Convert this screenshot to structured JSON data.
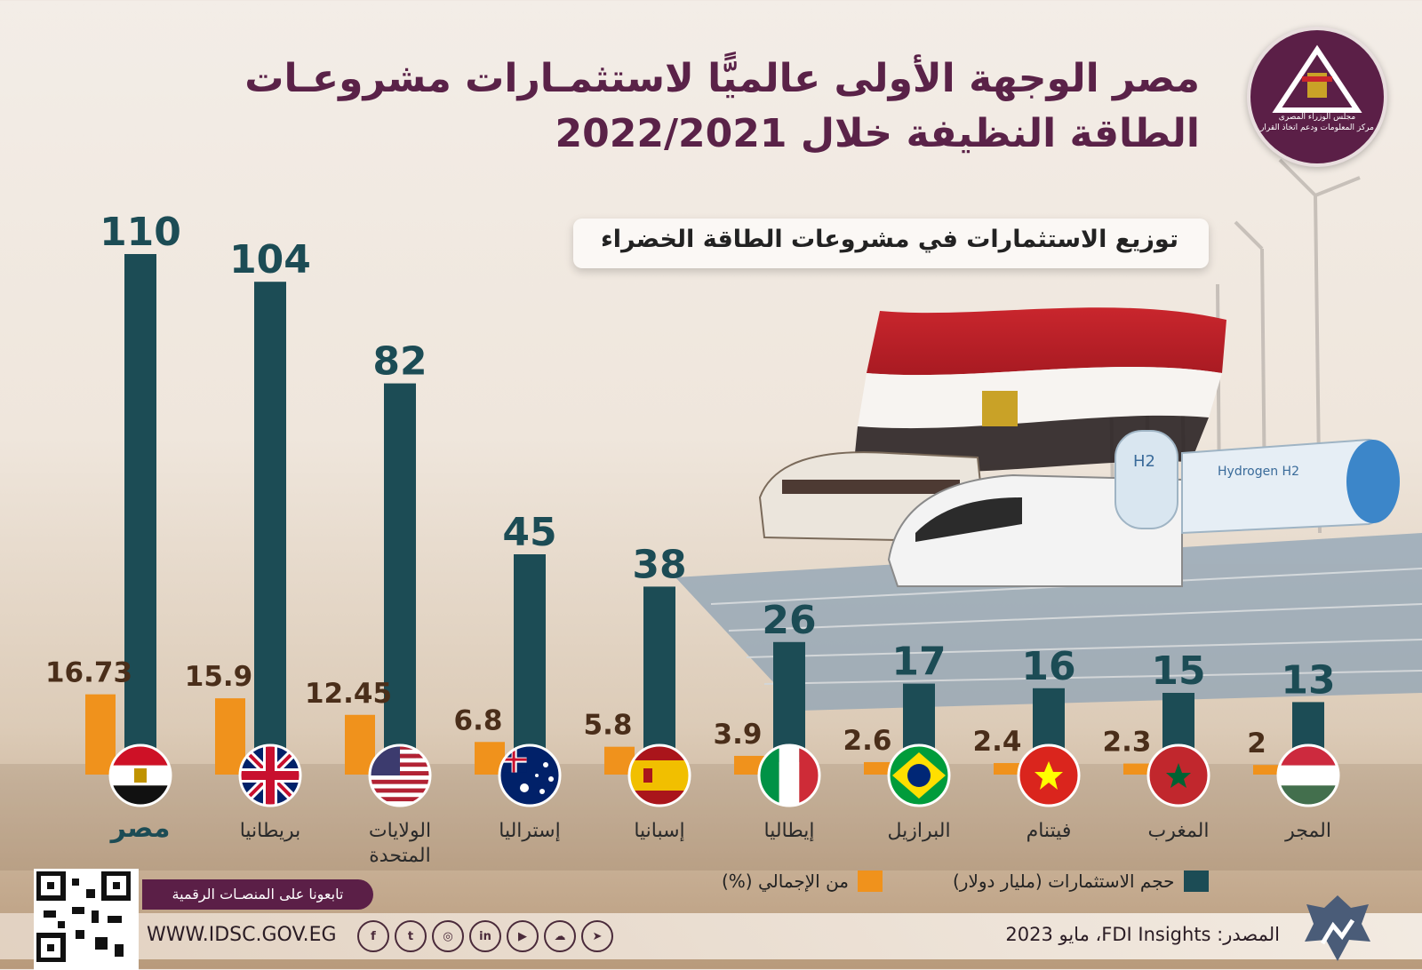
{
  "title": {
    "line1": "مصر الوجهة الأولى عالميًّا لاستثمـارات مشروعـات",
    "line2": "الطاقة النظيفة خلال 2022/2021"
  },
  "subtitle": "توزيع الاستثمارات في مشروعات الطاقة الخضراء",
  "logo": {
    "line1": "مجلس الوزراء المصرى",
    "line2": "مركز المعلومات ودعم اتخاذ القرار"
  },
  "colors": {
    "investment": "#1c4c55",
    "share": "#f0921c",
    "title": "#5a2248",
    "bar_label": "#1c4c55",
    "share_label": "#4a2e1a"
  },
  "chart_data": {
    "type": "bar",
    "categories": [
      "مصر",
      "بريطانيا",
      "الولايات المتحدة",
      "إستراليا",
      "إسبانيا",
      "إيطاليا",
      "البرازيل",
      "فيتنام",
      "المغرب",
      "المجر"
    ],
    "flags": [
      "egypt-flag-icon",
      "uk-flag-icon",
      "usa-flag-icon",
      "australia-flag-icon",
      "spain-flag-icon",
      "italy-flag-icon",
      "brazil-flag-icon",
      "vietnam-flag-icon",
      "morocco-flag-icon",
      "hungary-flag-icon"
    ],
    "series": [
      {
        "name": "حجم الاستثمارات (مليار دولار)",
        "values": [
          110,
          104,
          82,
          45,
          38,
          26,
          17,
          16,
          15,
          13
        ],
        "labels": [
          "110",
          "104",
          "82",
          "45",
          "38",
          "26",
          "17",
          "16",
          "15",
          "13"
        ]
      },
      {
        "name": "من الإجمالي (%)",
        "values": [
          16.73,
          15.9,
          12.45,
          6.8,
          5.8,
          3.9,
          2.6,
          2.4,
          2.3,
          2
        ],
        "labels": [
          "16.73",
          "15.9",
          "12.45",
          "6.8",
          "5.8",
          "3.9",
          "2.6",
          "2.4",
          "2.3",
          "2"
        ]
      }
    ],
    "ylim": [
      0,
      115
    ],
    "legend_position": "bottom"
  },
  "legend": {
    "investment": "حجم الاستثمارات (مليار دولار)",
    "share": "من الإجمالي (%)"
  },
  "footer": {
    "follow": "تابعونا على المنصـات الرقمية",
    "website": "WWW.IDSC.GOV.EG",
    "source": "المصدر: FDI Insights، مايو 2023",
    "social_icons": [
      "facebook-icon",
      "twitter-icon",
      "instagram-icon",
      "linkedin-icon",
      "youtube-icon",
      "soundcloud-icon",
      "telegram-icon"
    ]
  }
}
